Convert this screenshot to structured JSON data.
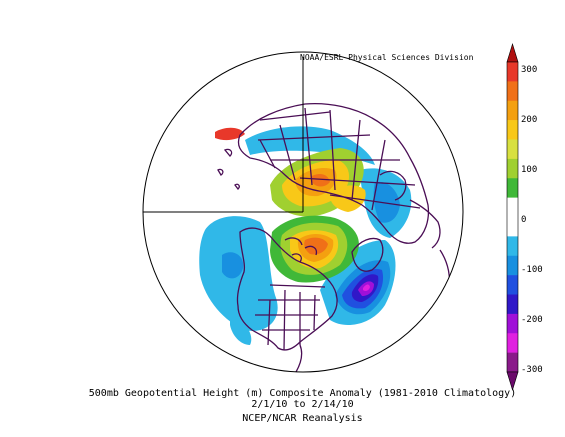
{
  "credit": "NOAA/ESRL Physical Sciences Division",
  "caption": {
    "line1": "500mb Geopotential Height (m) Composite Anomaly (1981-2010 Climatology)",
    "line2": "2/1/10  to 2/14/10",
    "line3": "NCEP/NCAR Reanalysis"
  },
  "colorbar": {
    "ticks": [
      "300",
      "200",
      "100",
      "0",
      "-100",
      "-200",
      "-300"
    ],
    "colors": [
      "#e8382a",
      "#f07018",
      "#f4a010",
      "#f8c818",
      "#d8e040",
      "#a0d030",
      "#40b838",
      "#ffffff",
      "#ffffff",
      "#30b8e8",
      "#1890e0",
      "#2050e0",
      "#3018c8",
      "#a010d8",
      "#e020e0",
      "#8a1a8a"
    ]
  },
  "map": {
    "projection": "north-polar-stereographic",
    "background": "#ffffff",
    "coastline_color": "#4a0e55"
  }
}
